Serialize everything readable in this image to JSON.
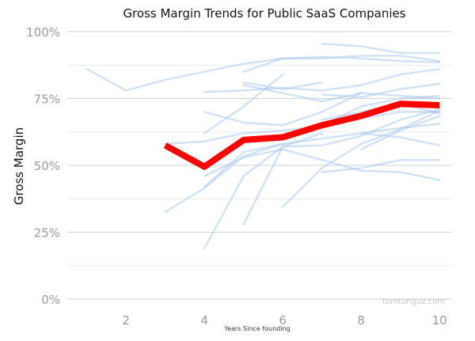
{
  "chart_data": {
    "type": "line",
    "title": "Gross Margin Trends for Public SaaS Companies",
    "xlabel": "Years Since founding",
    "ylabel": "Gross Margin",
    "xlim": [
      0.5,
      10.3
    ],
    "ylim": [
      0,
      100
    ],
    "x_ticks": [
      2,
      4,
      6,
      8,
      10
    ],
    "y_ticks": [
      0,
      25,
      50,
      75,
      100
    ],
    "y_tick_labels": [
      "0%",
      "25%",
      "50%",
      "75%",
      "100%"
    ],
    "grid": true,
    "watermark": "tomtunguz.com",
    "highlight_color": "#ff0000",
    "company_color": "#a9c8ea",
    "highlight": {
      "x": [
        3,
        4,
        5,
        6,
        7,
        8,
        9,
        10
      ],
      "y": [
        57.5,
        49.5,
        59.5,
        60.5,
        65,
        68.5,
        73,
        72.5
      ]
    },
    "series": [
      {
        "x": [
          1,
          2,
          3,
          4,
          5,
          6,
          7,
          8,
          9,
          10
        ],
        "y": [
          86,
          78,
          82,
          85,
          88,
          90,
          90,
          91,
          91,
          89
        ]
      },
      {
        "x": [
          5,
          6,
          7,
          8,
          9,
          10
        ],
        "y": [
          85,
          90,
          90.5,
          90,
          89,
          88.5
        ]
      },
      {
        "x": [
          7,
          8,
          9,
          10
        ],
        "y": [
          95.5,
          94.5,
          92,
          92
        ]
      },
      {
        "x": [
          5,
          6,
          7
        ],
        "y": [
          81,
          78.5,
          81
        ]
      },
      {
        "x": [
          4,
          5,
          6,
          7,
          8,
          9,
          10
        ],
        "y": [
          77.5,
          78,
          79,
          78,
          80,
          84,
          86
        ]
      },
      {
        "x": [
          7,
          8,
          9,
          10
        ],
        "y": [
          76.5,
          75.5,
          78.5,
          80.5
        ]
      },
      {
        "x": [
          4,
          5,
          6
        ],
        "y": [
          62,
          72,
          84
        ]
      },
      {
        "x": [
          5,
          6,
          7,
          8,
          9,
          10
        ],
        "y": [
          80,
          77,
          74,
          77,
          76,
          75
        ]
      },
      {
        "x": [
          4,
          5,
          6,
          7,
          8
        ],
        "y": [
          70,
          66,
          65,
          70,
          77
        ]
      },
      {
        "x": [
          3,
          4,
          5,
          6,
          7,
          8,
          9,
          10
        ],
        "y": [
          58,
          59,
          62,
          63,
          64.5,
          67.5,
          70,
          70
        ]
      },
      {
        "x": [
          6,
          7,
          8,
          9,
          10
        ],
        "y": [
          60,
          65,
          72,
          75,
          76
        ]
      },
      {
        "x": [
          7,
          8,
          9,
          10
        ],
        "y": [
          67,
          70,
          73,
          69.5
        ]
      },
      {
        "x": [
          4,
          5,
          6,
          7,
          8,
          9,
          10
        ],
        "y": [
          42,
          55,
          58,
          60,
          62,
          64,
          65.5
        ]
      },
      {
        "x": [
          3,
          4,
          5,
          6
        ],
        "y": [
          32.5,
          41.5,
          53.5,
          58
        ]
      },
      {
        "x": [
          4,
          5,
          6,
          7
        ],
        "y": [
          19,
          46,
          57,
          62
        ]
      },
      {
        "x": [
          5,
          6,
          7,
          8,
          9,
          10
        ],
        "y": [
          28,
          57,
          57.5,
          61,
          67,
          71
        ]
      },
      {
        "x": [
          6,
          7,
          8,
          9,
          10
        ],
        "y": [
          34.5,
          49,
          58,
          63.5,
          70.5
        ]
      },
      {
        "x": [
          4,
          5,
          6,
          7,
          8,
          9,
          10
        ],
        "y": [
          46,
          53,
          56,
          52,
          48,
          47.5,
          44.5
        ]
      },
      {
        "x": [
          7,
          8,
          9,
          10
        ],
        "y": [
          47.5,
          49,
          52,
          52
        ]
      },
      {
        "x": [
          8,
          9,
          10
        ],
        "y": [
          62,
          60.5,
          57.5
        ]
      },
      {
        "x": [
          8,
          9,
          10
        ],
        "y": [
          56,
          63,
          68.5
        ]
      }
    ]
  }
}
